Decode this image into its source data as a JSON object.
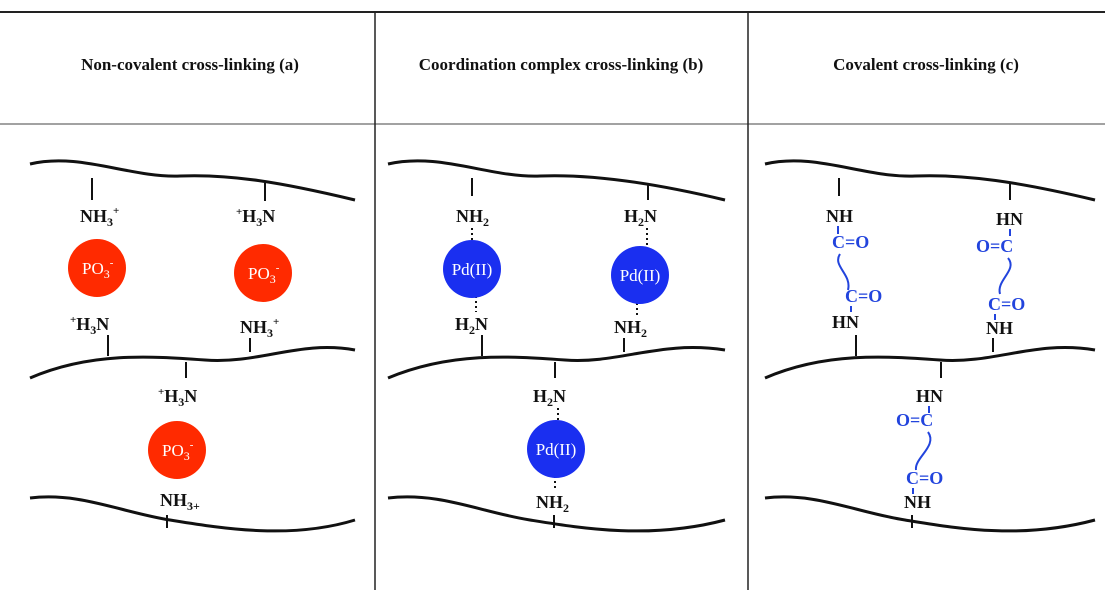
{
  "headers": {
    "a": "Non-covalent cross-linking (a)",
    "b": "Coordination complex cross-linking (b)",
    "c": "Covalent cross-linking (c)"
  },
  "colors": {
    "phosphate": "#ff2a00",
    "palladium": "#1a2ff0",
    "covalent_link": "#2244dd",
    "ink": "#111111"
  },
  "panel_a": {
    "amine_left": {
      "main": "NH",
      "sub": "3",
      "sup": "+"
    },
    "amine_right": {
      "prefix": "+",
      "main1": "H",
      "sub": "3",
      "main2": "N"
    },
    "amine_lower_left": {
      "prefix": "+",
      "main1": "H",
      "sub": "3",
      "main2": "N"
    },
    "amine_lower_right": {
      "main": "NH",
      "sub": "3",
      "sup": "+"
    },
    "amine_mid": {
      "prefix": "+",
      "main1": "H",
      "sub": "3",
      "main2": "N"
    },
    "amine_bottom": {
      "main": "NH",
      "sub": "3+"
    },
    "phosphate": {
      "main": "PO",
      "sub": "3",
      "sup": "-"
    }
  },
  "panel_b": {
    "metal": "Pd(II)",
    "nh2_top_left": {
      "main": "NH",
      "sub": "2"
    },
    "h2n_top_right": {
      "main1": "H",
      "sub": "2",
      "main2": "N"
    },
    "h2n_lower_left": {
      "main1": "H",
      "sub": "2",
      "main2": "N"
    },
    "nh2_lower_right": {
      "main": "NH",
      "sub": "2"
    },
    "h2n_mid": {
      "main1": "H",
      "sub": "2",
      "main2": "N"
    },
    "nh2_bottom": {
      "main": "NH",
      "sub": "2"
    }
  },
  "panel_c": {
    "nh": "NH",
    "hn": "HN",
    "carbonyl_right": "C=O",
    "carbonyl_left": "O=C"
  }
}
